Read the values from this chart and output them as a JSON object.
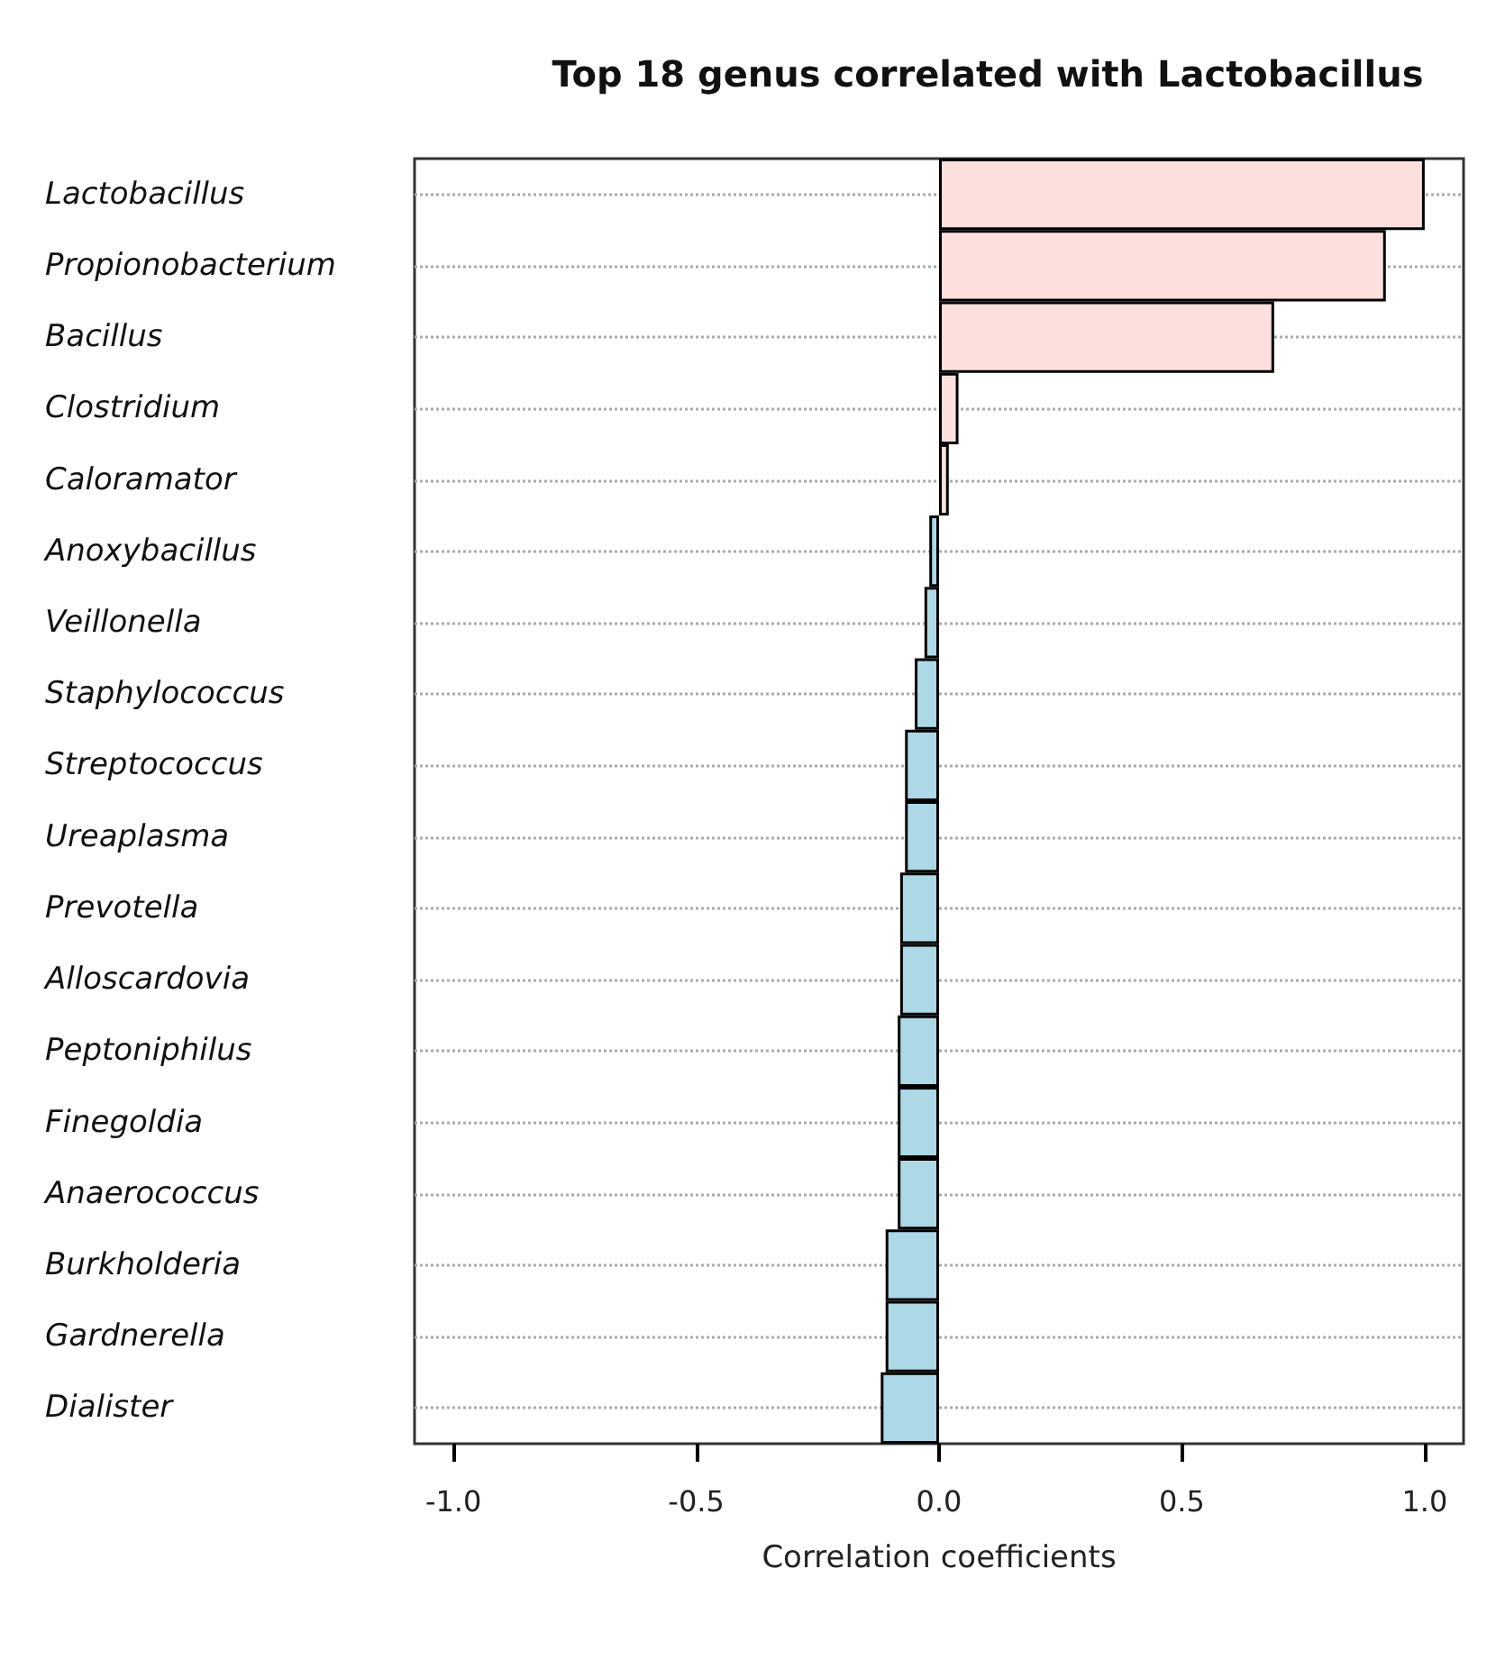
{
  "chart_data": {
    "type": "bar",
    "orientation": "horizontal",
    "title": "Top 18 genus correlated with Lactobacillus",
    "xlabel": "Correlation coefficients",
    "categories": [
      "Lactobacillus",
      "Propionobacterium",
      "Bacillus",
      "Clostridium",
      "Caloramator",
      "Anoxybacillus",
      "Veillonella",
      "Staphylococcus",
      "Streptococcus",
      "Ureaplasma",
      "Prevotella",
      "Alloscardovia",
      "Peptoniphilus",
      "Finegoldia",
      "Anaerococcus",
      "Burkholderia",
      "Gardnerella",
      "Dialister"
    ],
    "values": [
      1.0,
      0.92,
      0.69,
      0.04,
      0.02,
      -0.02,
      -0.03,
      -0.05,
      -0.07,
      -0.07,
      -0.08,
      -0.08,
      -0.085,
      -0.085,
      -0.085,
      -0.11,
      -0.11,
      -0.12
    ],
    "colors": [
      "#fde0dd",
      "#fde0dd",
      "#fde0dd",
      "#fde0dd",
      "#fde0dd",
      "#add8e6",
      "#add8e6",
      "#add8e6",
      "#add8e6",
      "#add8e6",
      "#add8e6",
      "#add8e6",
      "#add8e6",
      "#add8e6",
      "#add8e6",
      "#add8e6",
      "#add8e6",
      "#add8e6"
    ],
    "xlim": [
      -1.08,
      1.08
    ],
    "xticks": [
      {
        "value": -1,
        "label": "-1.0"
      },
      {
        "value": -0.5,
        "label": "-0.5"
      },
      {
        "value": 0,
        "label": "0.0"
      },
      {
        "value": 0.5,
        "label": "0.5"
      },
      {
        "value": 1,
        "label": "1.0"
      }
    ],
    "grid": "y"
  }
}
